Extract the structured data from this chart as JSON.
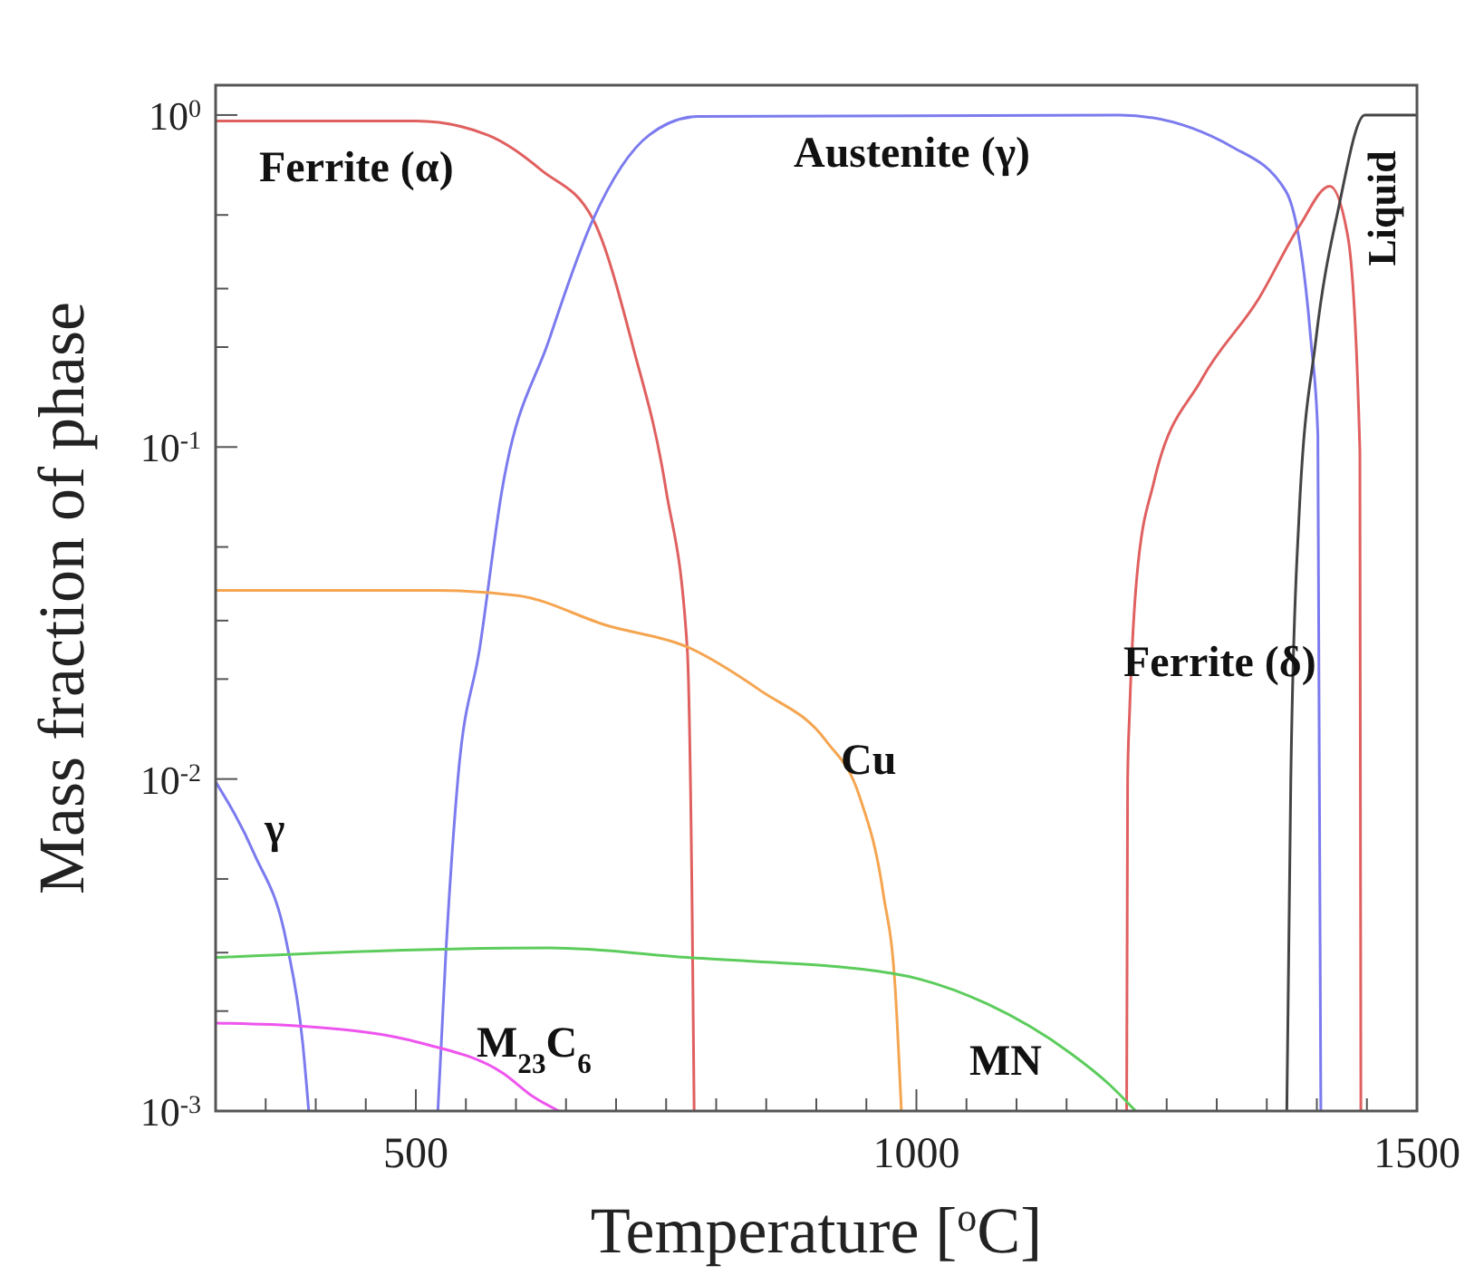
{
  "chart_data": {
    "type": "line",
    "xlabel": "Temperature [$^{o}$C]",
    "ylabel": "Mass fraction of phase",
    "log": "y",
    "grid": false,
    "marker": "none",
    "line_style": "solid",
    "xlim": [
      300,
      1500
    ],
    "xticks": [
      {
        "value": 350,
        "label": null
      },
      {
        "value": 400,
        "label": null
      },
      {
        "value": 450,
        "label": null
      },
      500,
      {
        "value": 550,
        "label": null
      },
      {
        "value": 600,
        "label": null
      },
      {
        "value": 650,
        "label": null
      },
      {
        "value": 700,
        "label": null
      },
      {
        "value": 750,
        "label": null
      },
      {
        "value": 800,
        "label": null
      },
      {
        "value": 850,
        "label": null
      },
      {
        "value": 900,
        "label": null
      },
      {
        "value": 950,
        "label": null
      },
      1000,
      {
        "value": 1050,
        "label": null
      },
      {
        "value": 1100,
        "label": null
      },
      {
        "value": 1150,
        "label": null
      },
      {
        "value": 1200,
        "label": null
      },
      {
        "value": 1250,
        "label": null
      },
      {
        "value": 1300,
        "label": null
      },
      {
        "value": 1350,
        "label": null
      },
      {
        "value": 1400,
        "label": null
      },
      {
        "value": 1450,
        "label": null
      },
      1500
    ],
    "ylim": [
      0.001,
      1.23
    ],
    "yticks": [
      {
        "value": 0.001,
        "label": "10$^{-3}$"
      },
      {
        "value": 0.002,
        "label": null
      },
      {
        "value": 0.003,
        "label": null
      },
      {
        "value": 0.005,
        "label": null
      },
      {
        "value": 0.01,
        "label": "10$^{-2}$"
      },
      {
        "value": 0.02,
        "label": null
      },
      {
        "value": 0.03,
        "label": null
      },
      {
        "value": 0.05,
        "label": null
      },
      {
        "value": 0.1,
        "label": "10$^{-1}$"
      },
      {
        "value": 0.2,
        "label": null
      },
      {
        "value": 0.3,
        "label": null
      },
      {
        "value": 0.5,
        "label": null
      },
      {
        "value": 1,
        "label": "10$^{0}$"
      }
    ],
    "series": [
      {
        "name": "Ferrite (α)",
        "color": "#e06060",
        "x": [
          300,
          500,
          572,
          626,
          677,
          717,
          750,
          771,
          776,
          778
        ],
        "values": [
          0.96,
          0.96,
          0.87,
          0.68,
          0.485,
          0.2,
          0.074,
          0.025,
          0.004,
          0.001
        ]
      },
      {
        "name": "Austenite (γ)",
        "color": "#7b7bef",
        "x": [
          522,
          530,
          542,
          564,
          586,
          633,
          677,
          733,
          782,
          1203,
          1316,
          1369,
          1394,
          1401,
          1404
        ],
        "values": [
          0.001,
          0.003,
          0.01,
          0.025,
          0.074,
          0.21,
          0.485,
          0.87,
          0.99,
          1.0,
          0.8,
          0.59,
          0.21,
          0.109,
          0.001
        ]
      },
      {
        "name": "γ",
        "color": "#7b7bef",
        "x": [
          300,
          338,
          371,
          387,
          393
        ],
        "values": [
          0.0098,
          0.006,
          0.0032,
          0.0016,
          0.001
        ]
      },
      {
        "name": "Ferrite (δ)",
        "color": "#e06060",
        "x": [
          1210,
          1211,
          1213,
          1220,
          1237,
          1285,
          1342,
          1382,
          1413,
          1431,
          1443,
          1444
        ],
        "values": [
          0.001,
          0.01,
          0.016,
          0.04,
          0.078,
          0.16,
          0.28,
          0.46,
          0.61,
          0.43,
          0.097,
          0.001
        ]
      },
      {
        "name": "Liquid",
        "color": "#444444",
        "x": [
          1370,
          1374,
          1382,
          1399,
          1422,
          1448,
          1500
        ],
        "values": [
          0.001,
          0.01,
          0.06,
          0.21,
          0.53,
          1.0,
          1.0
        ]
      },
      {
        "name": "Cu",
        "color": "#f5a550",
        "x": [
          300,
          522,
          602,
          691,
          771,
          845,
          910,
          943,
          967,
          979,
          985
        ],
        "values": [
          0.037,
          0.037,
          0.0357,
          0.029,
          0.025,
          0.0184,
          0.013,
          0.0089,
          0.0045,
          0.0023,
          0.001
        ]
      },
      {
        "name": "MN",
        "color": "#5ccc5c",
        "x": [
          300,
          634,
          771,
          975,
          1071,
          1153,
          1193,
          1219
        ],
        "values": [
          0.0029,
          0.0031,
          0.0029,
          0.0026,
          0.0021,
          0.0015,
          0.0012,
          0.001
        ]
      },
      {
        "name": "M$_{23}$C$_{6}$",
        "color": "#ee55ee",
        "x": [
          300,
          387,
          506,
          587,
          618,
          643
        ],
        "values": [
          0.00184,
          0.0018,
          0.0016,
          0.0013,
          0.0011,
          0.001
        ]
      }
    ]
  }
}
